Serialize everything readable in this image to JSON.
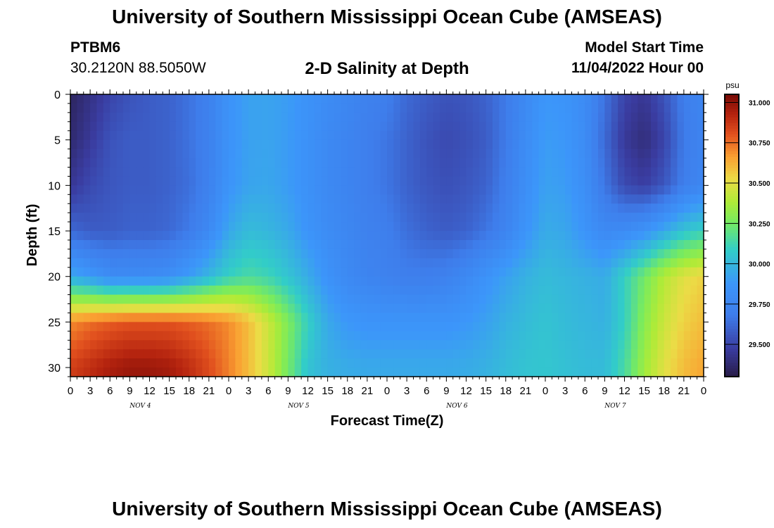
{
  "header": {
    "title": "University of Southern Mississippi Ocean Cube (AMSEAS)",
    "station": "PTBM6",
    "coordinates": "30.2120N  88.5050W",
    "subtitle": "2-D Salinity at Depth",
    "model_start_label": "Model Start Time",
    "model_start_time": "11/04/2022 Hour 00"
  },
  "footer": {
    "title": "University of Southern Mississippi Ocean Cube (AMSEAS)"
  },
  "chart_data": {
    "type": "heatmap",
    "title": "2-D Salinity at Depth",
    "xlabel": "Forecast Time(Z)",
    "ylabel": "Depth (ft)",
    "x_ticks": [
      "0",
      "3",
      "6",
      "9",
      "12",
      "15",
      "18",
      "21",
      "0",
      "3",
      "6",
      "9",
      "12",
      "15",
      "18",
      "21",
      "0",
      "3",
      "6",
      "9",
      "12",
      "15",
      "18",
      "21",
      "0",
      "3",
      "6",
      "9",
      "12",
      "15",
      "18",
      "21",
      "0"
    ],
    "x_day_labels": [
      "NOV 4",
      "NOV 5",
      "NOV 6",
      "NOV 7"
    ],
    "xlim_hours": [
      0,
      96
    ],
    "y_ticks": [
      0,
      5,
      10,
      15,
      20,
      25,
      30
    ],
    "ylim_ft": [
      0,
      31
    ],
    "colorbar": {
      "unit": "psu",
      "min": 29.3,
      "max": 31.05,
      "ticks": [
        "31.000",
        "30.750",
        "30.500",
        "30.250",
        "30.000",
        "29.750",
        "29.500"
      ]
    },
    "description_grid": {
      "hours": [
        0,
        3,
        6,
        9,
        12,
        15,
        18,
        21,
        24,
        27,
        30,
        33,
        36,
        39,
        42,
        45,
        48,
        51,
        54,
        57,
        60,
        63,
        66,
        69,
        72,
        75,
        78,
        81,
        84,
        87,
        90,
        93,
        96
      ],
      "depths_ft": [
        0,
        5,
        10,
        15,
        20,
        25,
        30
      ],
      "salinity_psu": [
        [
          29.35,
          29.42,
          29.5,
          29.55,
          29.58,
          29.6,
          29.65,
          29.72,
          29.85,
          29.92,
          29.93,
          29.9,
          29.85,
          29.8,
          29.76,
          29.72,
          29.7,
          29.62,
          29.58,
          29.55,
          29.56,
          29.6,
          29.68,
          29.78,
          29.88,
          29.86,
          29.8,
          29.65,
          29.5,
          29.45,
          29.55,
          29.7,
          29.75
        ],
        [
          29.38,
          29.46,
          29.55,
          29.58,
          29.58,
          29.6,
          29.65,
          29.72,
          29.85,
          29.92,
          29.93,
          29.9,
          29.84,
          29.78,
          29.74,
          29.7,
          29.66,
          29.6,
          29.55,
          29.52,
          29.54,
          29.58,
          29.68,
          29.8,
          29.9,
          29.88,
          29.8,
          29.62,
          29.46,
          29.4,
          29.5,
          29.68,
          29.74
        ],
        [
          29.45,
          29.52,
          29.56,
          29.58,
          29.58,
          29.6,
          29.64,
          29.72,
          29.86,
          29.93,
          29.94,
          29.9,
          29.84,
          29.78,
          29.74,
          29.7,
          29.66,
          29.6,
          29.56,
          29.54,
          29.56,
          29.6,
          29.7,
          29.82,
          29.92,
          29.9,
          29.82,
          29.66,
          29.52,
          29.48,
          29.56,
          29.7,
          29.76
        ],
        [
          29.62,
          29.58,
          29.58,
          29.6,
          29.6,
          29.62,
          29.68,
          29.78,
          29.94,
          30.02,
          30.0,
          29.95,
          29.86,
          29.8,
          29.76,
          29.72,
          29.7,
          29.64,
          29.6,
          29.58,
          29.6,
          29.66,
          29.74,
          29.86,
          29.96,
          29.94,
          29.86,
          29.78,
          29.8,
          29.85,
          29.95,
          30.05,
          30.1
        ],
        [
          29.95,
          29.88,
          29.8,
          29.8,
          29.8,
          29.82,
          29.9,
          30.0,
          30.1,
          30.15,
          30.12,
          30.05,
          29.96,
          29.85,
          29.78,
          29.74,
          29.72,
          29.7,
          29.7,
          29.72,
          29.78,
          29.85,
          29.92,
          29.98,
          30.02,
          30.0,
          29.98,
          29.96,
          30.1,
          30.25,
          30.4,
          30.5,
          30.55
        ],
        [
          30.7,
          30.75,
          30.78,
          30.8,
          30.8,
          30.8,
          30.78,
          30.75,
          30.7,
          30.6,
          30.45,
          30.28,
          30.1,
          29.95,
          29.88,
          29.86,
          29.86,
          29.86,
          29.86,
          29.86,
          29.88,
          29.92,
          29.98,
          30.02,
          30.05,
          30.02,
          30.0,
          29.98,
          30.1,
          30.3,
          30.45,
          30.55,
          30.6
        ],
        [
          30.85,
          30.9,
          30.95,
          30.98,
          30.98,
          30.96,
          30.9,
          30.82,
          30.72,
          30.6,
          30.45,
          30.25,
          30.05,
          29.98,
          29.96,
          29.95,
          29.95,
          29.95,
          29.95,
          29.95,
          29.96,
          29.98,
          30.02,
          30.05,
          30.06,
          30.04,
          30.02,
          30.02,
          30.15,
          30.35,
          30.5,
          30.6,
          30.65
        ]
      ]
    }
  }
}
